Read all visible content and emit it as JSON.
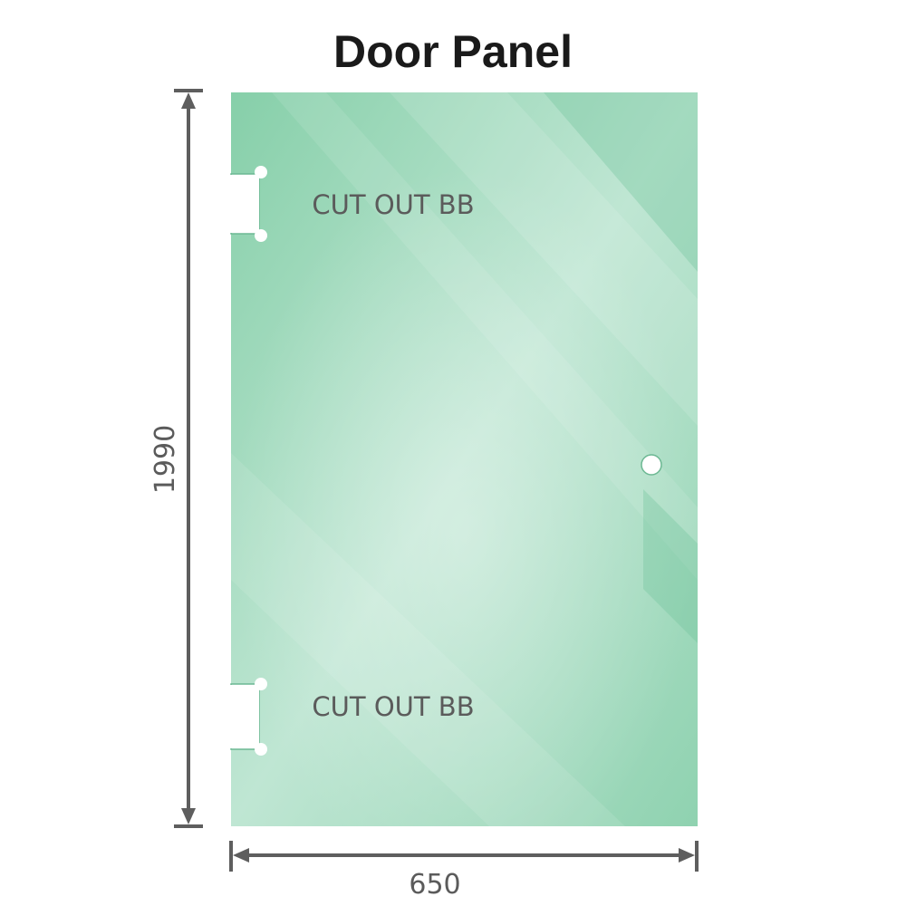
{
  "title": "Door Panel",
  "panel": {
    "cutout_top_label": "CUT OUT BB",
    "cutout_bottom_label": "CUT OUT BB",
    "glass_color": "#7fcaa4",
    "glass_highlight_color": "#bfe6d3"
  },
  "dimensions": {
    "height": "1990",
    "width": "650",
    "line_color": "#5e5e5e"
  }
}
